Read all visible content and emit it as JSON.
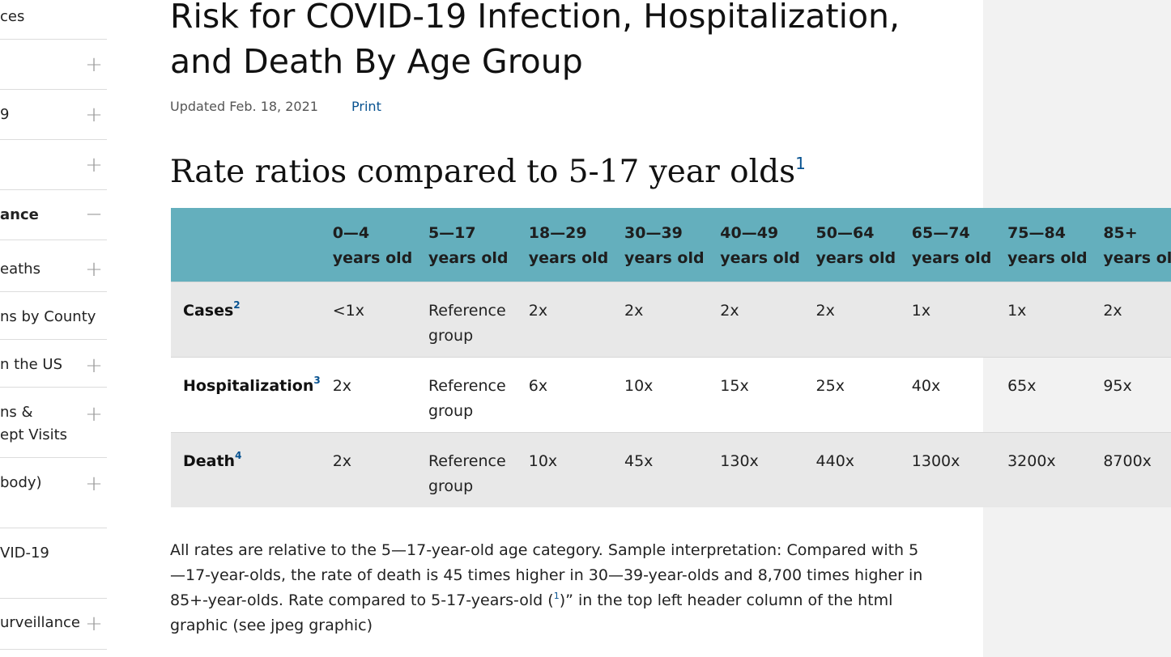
{
  "sidebar": {
    "items": [
      {
        "label": "ces",
        "toggle": "",
        "active": false
      },
      {
        "label": "",
        "toggle": "+",
        "active": false
      },
      {
        "label": "9",
        "toggle": "+",
        "active": false
      },
      {
        "label": "",
        "toggle": "+",
        "active": false
      },
      {
        "label": "ance",
        "toggle": "−",
        "active": true
      },
      {
        "label": "eaths",
        "toggle": "+",
        "active": false
      },
      {
        "label": "ns by County",
        "toggle": "",
        "active": false
      },
      {
        "label": "n the US",
        "toggle": "+",
        "active": false
      },
      {
        "label": "ns &",
        "label2": "ept Visits",
        "toggle": "+",
        "active": false
      },
      {
        "label": "body)",
        "toggle": "+",
        "active": false
      },
      {
        "label": "VID-19",
        "toggle": "",
        "active": false
      },
      {
        "label": "urveillance",
        "toggle": "+",
        "active": false
      }
    ]
  },
  "page": {
    "title": "Risk for COVID-19 Infection, Hospitalization, and Death By Age Group",
    "updated": "Updated Feb. 18, 2021",
    "print": "Print"
  },
  "section": {
    "title": "Rate ratios compared to 5-17 year olds",
    "footnote_ref": "1"
  },
  "table": {
    "columns": [
      {
        "range": "0—4",
        "unit": "years old"
      },
      {
        "range": "5—17",
        "unit": "years old"
      },
      {
        "range": "18—29",
        "unit": "years old"
      },
      {
        "range": "30—39",
        "unit": "years old"
      },
      {
        "range": "40—49",
        "unit": "years old"
      },
      {
        "range": "50—64",
        "unit": "years old"
      },
      {
        "range": "65—74",
        "unit": "years old"
      },
      {
        "range": "75—84",
        "unit": "years old"
      },
      {
        "range": "85+",
        "unit": "years old"
      }
    ],
    "rows": [
      {
        "label": "Cases",
        "ref": "2",
        "values": [
          "<1x",
          "Reference group",
          "2x",
          "2x",
          "2x",
          "2x",
          "1x",
          "1x",
          "2x"
        ]
      },
      {
        "label": "Hospitalization",
        "ref": "3",
        "values": [
          "2x",
          "Reference group",
          "6x",
          "10x",
          "15x",
          "25x",
          "40x",
          "65x",
          "95x"
        ]
      },
      {
        "label": "Death",
        "ref": "4",
        "values": [
          "2x",
          "Reference group",
          "10x",
          "45x",
          "130x",
          "440x",
          "1300x",
          "3200x",
          "8700x"
        ]
      }
    ]
  },
  "footnote": {
    "text_before": "All rates are relative to the 5—17-year-old age category. Sample interpretation: Compared with 5—17-year-olds, the rate of death is 45 times higher in 30—39-year-olds and 8,700 times higher in 85+-year-olds. Rate compared to 5-17-years-old (",
    "ref": "1",
    "text_after": ")” in the top left header column of the html graphic (see jpeg graphic)"
  },
  "colors": {
    "header_bg": "#64afbd",
    "row_shade": "#e8e8e8",
    "link": "#075290",
    "right_rail": "#f2f2f2"
  }
}
